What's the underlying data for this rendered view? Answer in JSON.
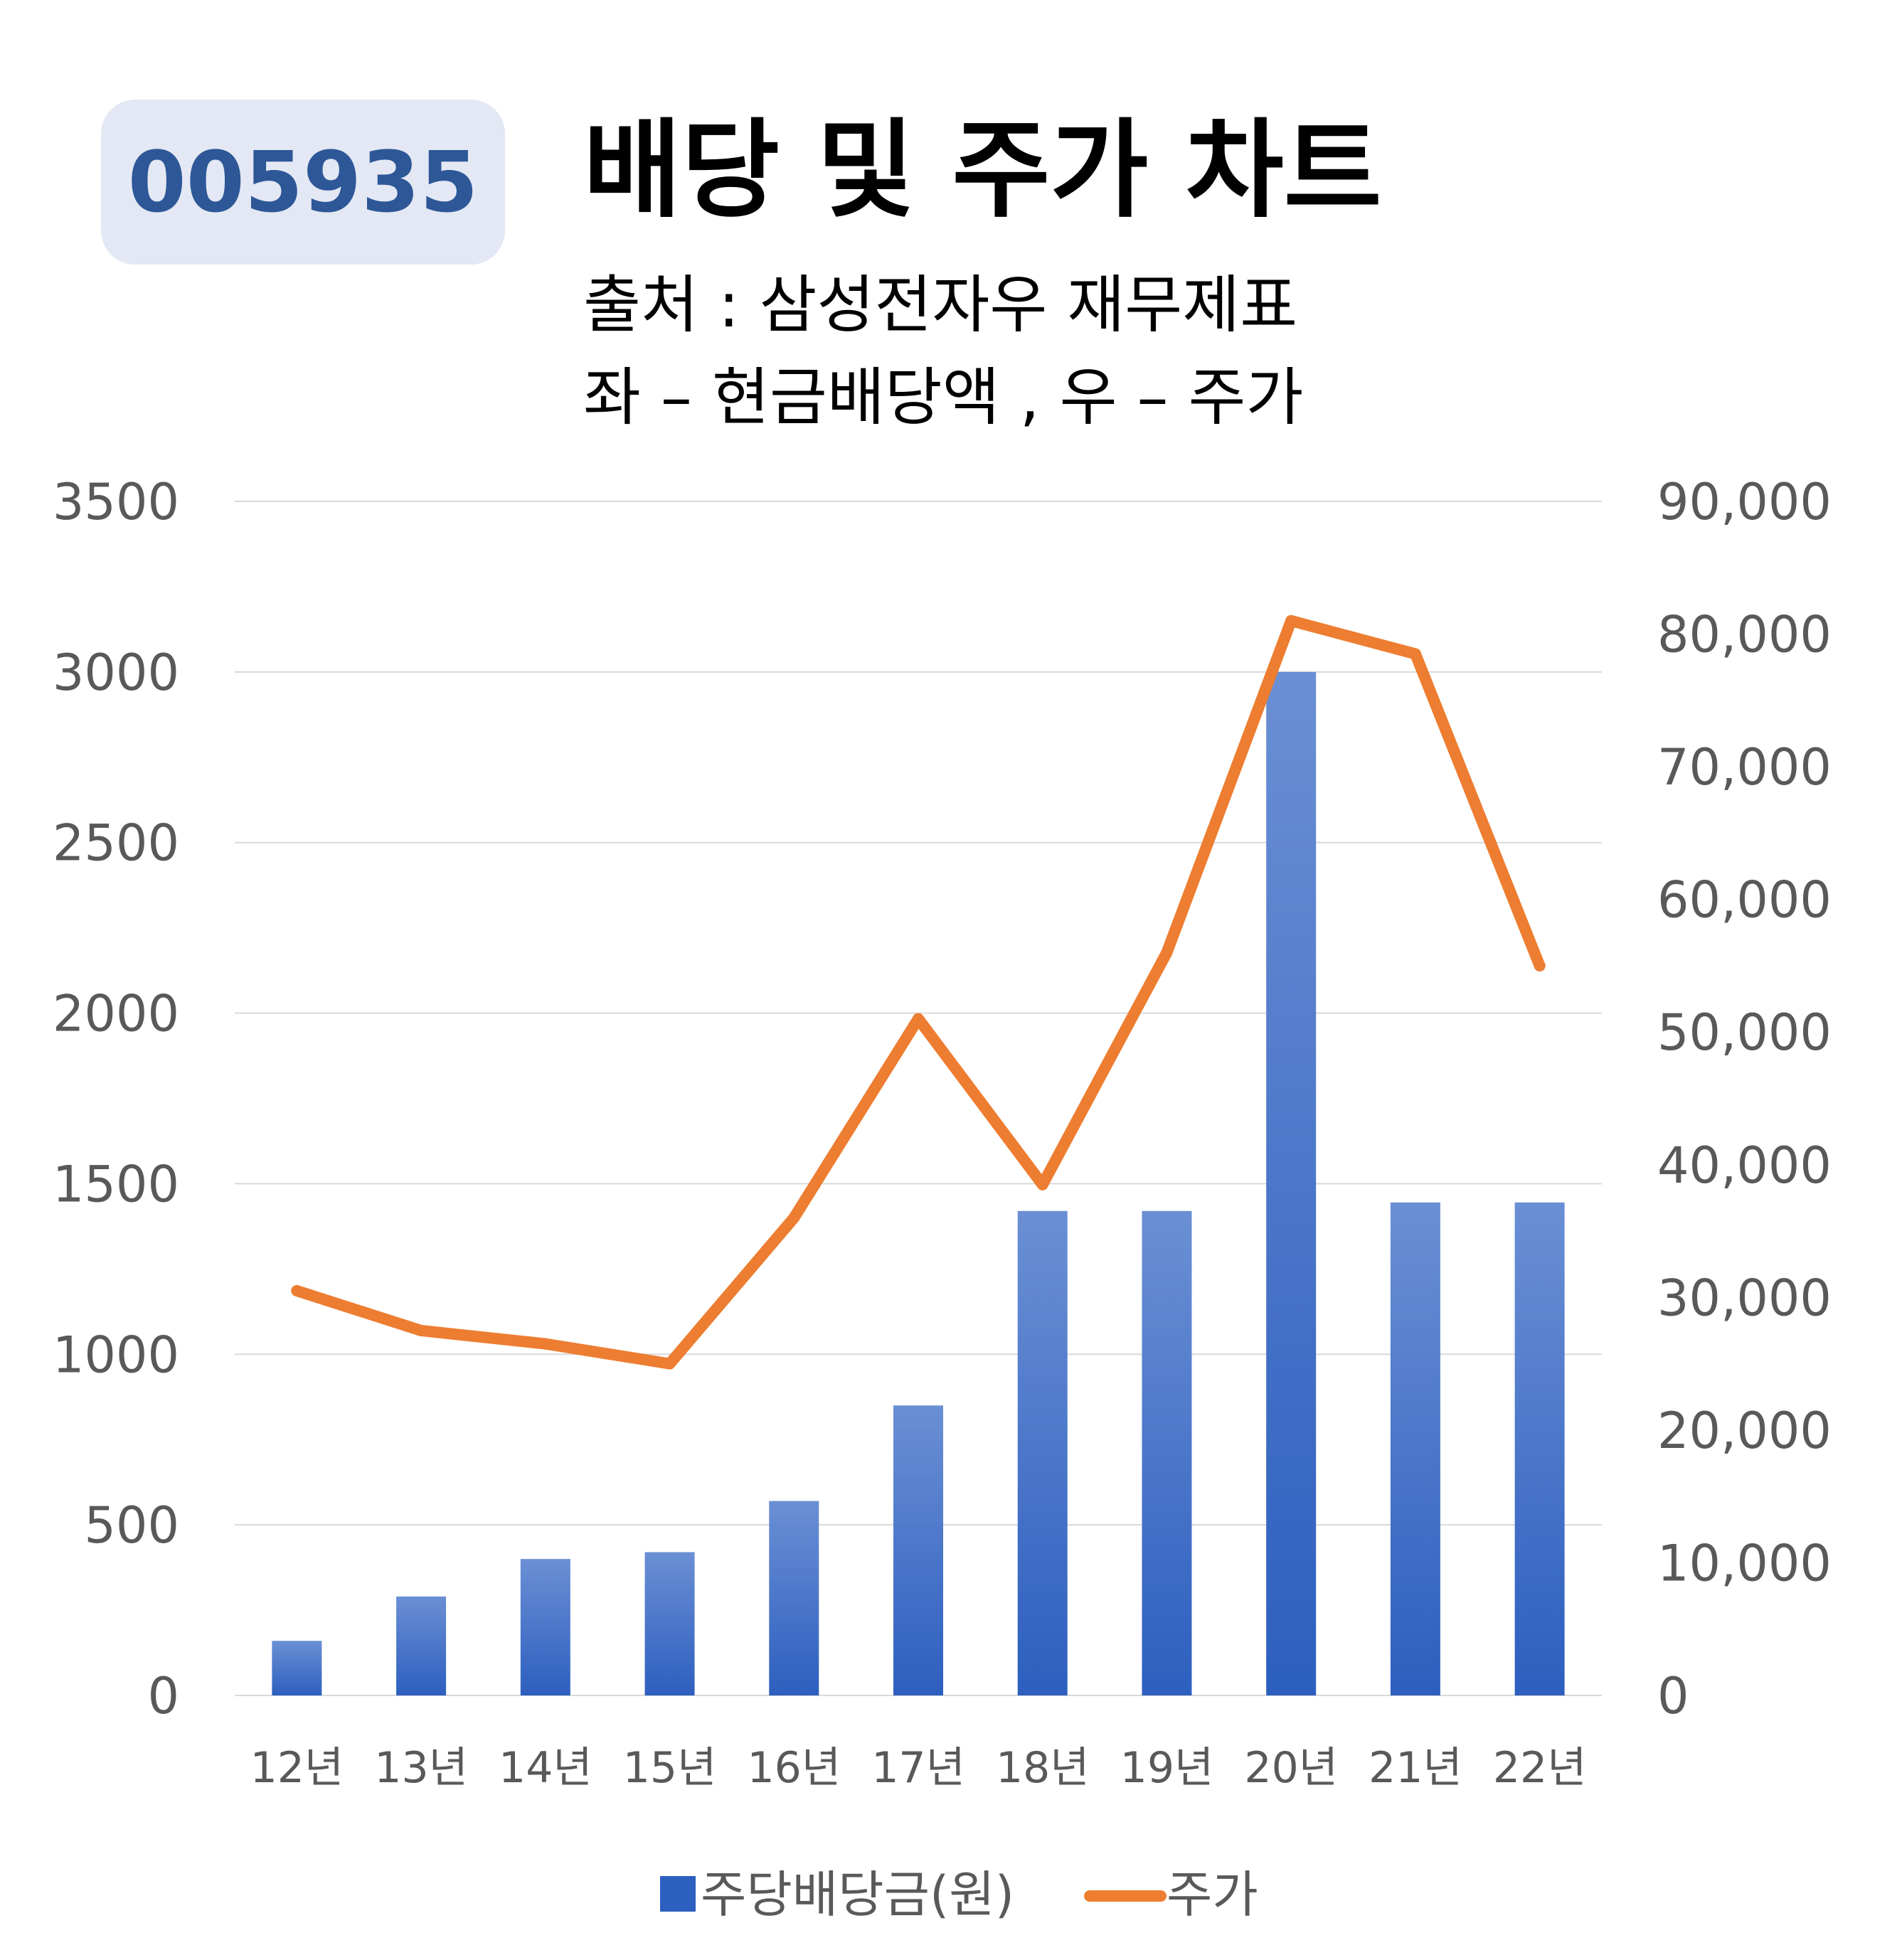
{
  "ticker": "005935",
  "title": "배당 및 주가 차트",
  "subtitle_line1": "출처 : 삼성전자우 재무제표",
  "subtitle_line2": "좌 – 현금배당액 , 우 – 주가",
  "colors": {
    "bar_top": "#6a8fd4",
    "bar_bottom": "#2d5fbf",
    "line": "#ed7d31",
    "grid": "#d9d9d9",
    "ticker_bg": "#e3e8f4",
    "ticker_text": "#2d5797"
  },
  "chart_data": {
    "type": "bar",
    "categories": [
      "12년",
      "13년",
      "14년",
      "15년",
      "16년",
      "17년",
      "18년",
      "19년",
      "20년",
      "21년",
      "22년"
    ],
    "series": [
      {
        "name": "주당배당금(원)",
        "type": "bar",
        "axis": "left",
        "values": [
          160,
          290,
          400,
          420,
          570,
          850,
          1420,
          1420,
          3000,
          1445,
          1445
        ]
      },
      {
        "name": "주가",
        "type": "line",
        "axis": "right",
        "values": [
          30500,
          27500,
          26500,
          25000,
          36000,
          51000,
          38500,
          56000,
          81000,
          78500,
          55000
        ]
      }
    ],
    "left_axis": {
      "min": 0,
      "max": 3500,
      "ticks": [
        "0",
        "500",
        "1000",
        "1500",
        "2000",
        "2500",
        "3000",
        "3500"
      ]
    },
    "right_axis": {
      "min": 0,
      "max": 90000,
      "ticks": [
        "0",
        "10,000",
        "20,000",
        "30,000",
        "40,000",
        "50,000",
        "60,000",
        "70,000",
        "80,000",
        "90,000"
      ]
    },
    "grid": true,
    "legend_position": "bottom"
  }
}
